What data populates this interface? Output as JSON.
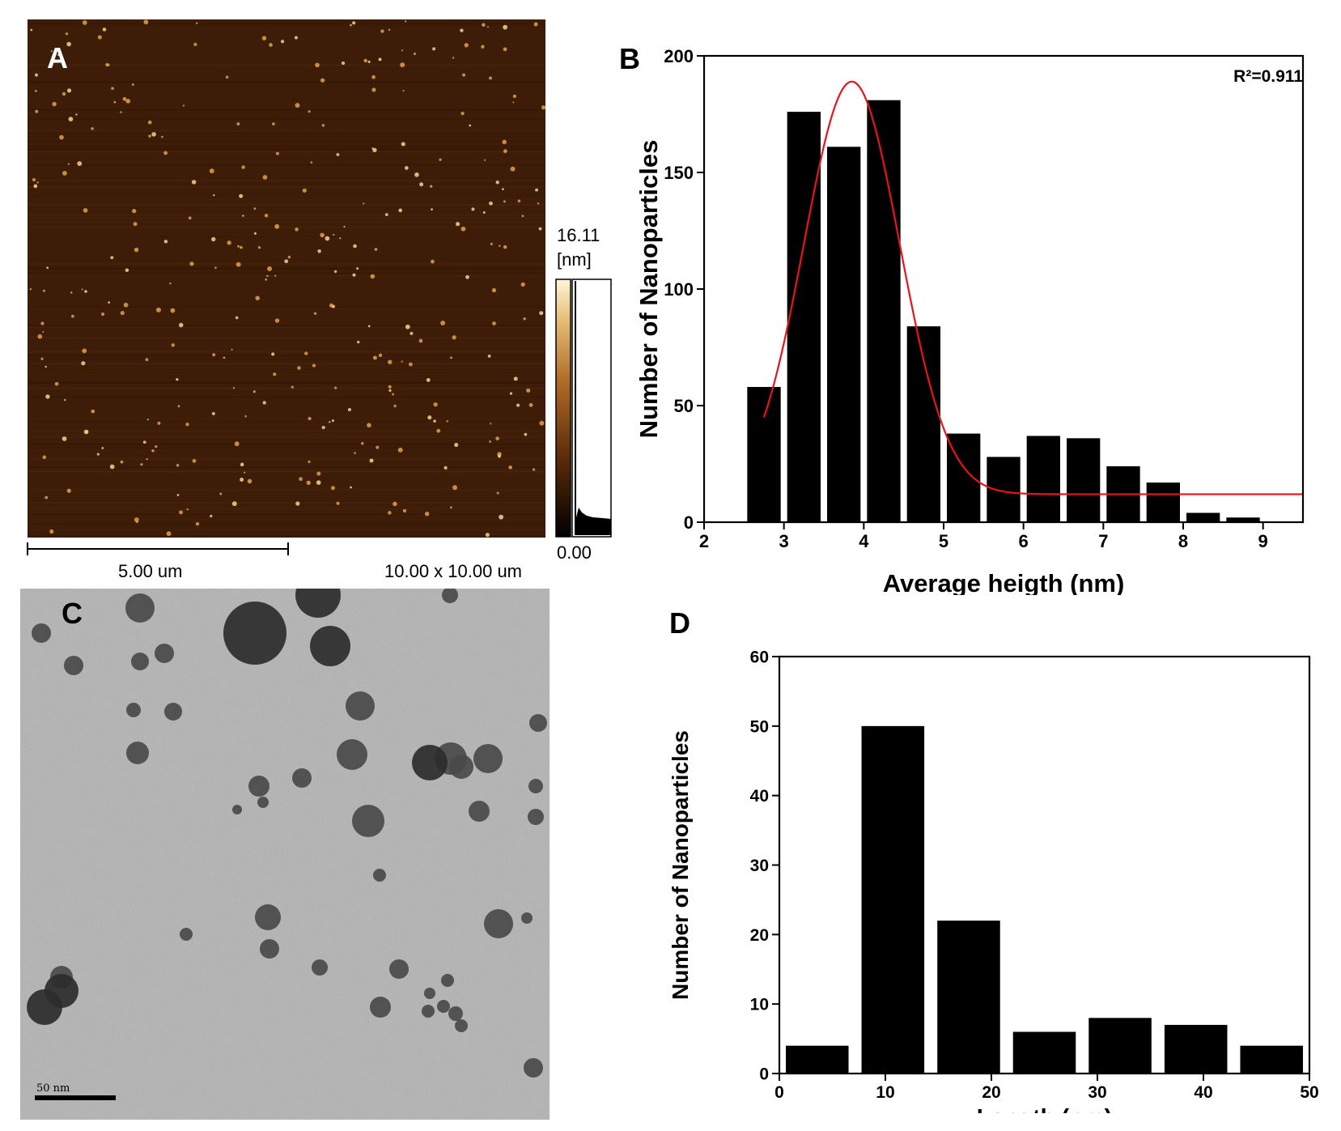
{
  "panels": {
    "a": {
      "letter": "A",
      "scalebar_label": "5.00 um",
      "scan_size": "10.00 x 10.00 um",
      "colorbar_max": "16.11",
      "colorbar_unit": "[nm]",
      "colorbar_min": "0.00"
    },
    "b": {
      "letter": "B",
      "r2_label": "R²=0.911"
    },
    "c": {
      "letter": "C",
      "scalebar_label": "50 nm"
    },
    "d": {
      "letter": "D"
    }
  },
  "colors": {
    "bar": "#000000",
    "fit_curve": "#e8141c",
    "afm_background": "#3e1d08",
    "tem_background": "#bdbdbd"
  },
  "chart_data": [
    {
      "id": "B",
      "type": "bar",
      "xlabel": "Average heigth (nm)",
      "ylabel": "Number of Nanoparticles",
      "xlim": [
        2,
        9.5
      ],
      "ylim": [
        0,
        200
      ],
      "xticks": [
        2,
        3,
        4,
        5,
        6,
        7,
        8,
        9
      ],
      "yticks": [
        0,
        50,
        100,
        150,
        200
      ],
      "bin_width": 0.5,
      "bins": [
        {
          "x": 2.75,
          "y": 58
        },
        {
          "x": 3.25,
          "y": 176
        },
        {
          "x": 3.75,
          "y": 161
        },
        {
          "x": 4.25,
          "y": 181
        },
        {
          "x": 4.75,
          "y": 84
        },
        {
          "x": 5.25,
          "y": 38
        },
        {
          "x": 5.75,
          "y": 28
        },
        {
          "x": 6.25,
          "y": 37
        },
        {
          "x": 6.75,
          "y": 36
        },
        {
          "x": 7.25,
          "y": 24
        },
        {
          "x": 7.75,
          "y": 17
        },
        {
          "x": 8.25,
          "y": 4
        },
        {
          "x": 8.75,
          "y": 2
        }
      ],
      "fit": {
        "type": "gaussian",
        "y0": 12,
        "amplitude": 177,
        "center": 3.85,
        "sigma": 0.6,
        "x_range": [
          2.75,
          9.5
        ]
      }
    },
    {
      "id": "D",
      "type": "bar",
      "xlabel": "Length (nm)",
      "ylabel": "Number of Nanoparticles",
      "xlim": [
        0,
        50
      ],
      "ylim": [
        0,
        60
      ],
      "xticks": [
        0,
        10,
        20,
        30,
        40,
        50
      ],
      "yticks": [
        0,
        10,
        20,
        30,
        40,
        50,
        60
      ],
      "bin_width": 7.14,
      "bins": [
        {
          "x": 3.57,
          "y": 4
        },
        {
          "x": 10.71,
          "y": 50
        },
        {
          "x": 17.86,
          "y": 22
        },
        {
          "x": 25.0,
          "y": 6
        },
        {
          "x": 32.14,
          "y": 8
        },
        {
          "x": 39.29,
          "y": 7
        },
        {
          "x": 46.43,
          "y": 4
        }
      ]
    }
  ]
}
